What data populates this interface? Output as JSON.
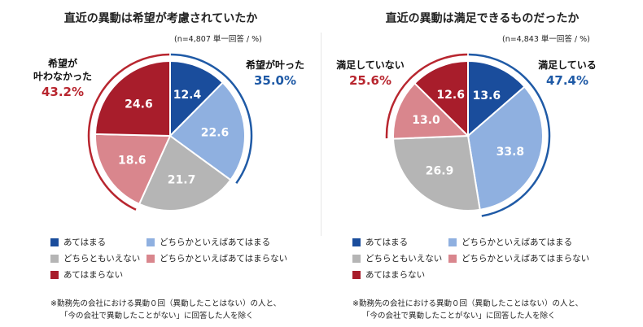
{
  "legend": {
    "items": [
      {
        "label": "あてはまる",
        "color": "#1a4d9c"
      },
      {
        "label": "どちらかといえばあてはまる",
        "color": "#8fb0e0"
      },
      {
        "label": "どちらともいえない",
        "color": "#b5b5b5"
      },
      {
        "label": "どちらかといえばあてはまらない",
        "color": "#d9868d"
      },
      {
        "label": "あてはまらない",
        "color": "#a81d2b"
      }
    ]
  },
  "footnote": {
    "line1": "※勤務先の会社における異動０回（異動したことはない）の人と、",
    "line2": "「今の会社で異動したことがない」に回答した人を除く"
  },
  "chart_data": [
    {
      "type": "pie",
      "title": "直近の異動は希望が考慮されていたか",
      "note": "(n=4,807 単一回答 / %)",
      "categories": [
        "あてはまる",
        "どちらかといえばあてはまる",
        "どちらともいえない",
        "どちらかといえばあてはまらない",
        "あてはまらない"
      ],
      "values": [
        12.4,
        22.6,
        21.7,
        18.6,
        24.6
      ],
      "colors": [
        "#1a4d9c",
        "#8fb0e0",
        "#b5b5b5",
        "#d9868d",
        "#a81d2b"
      ],
      "positive": {
        "label": "希望が叶った",
        "value": "35.0%",
        "color": "#1f5aa6"
      },
      "negative": {
        "label_line1": "希望が",
        "label_line2": "叶わなかった",
        "value": "43.2%",
        "color": "#b8262f"
      }
    },
    {
      "type": "pie",
      "title": "直近の異動は満足できるものだったか",
      "note": "(n=4,843 単一回答 / %)",
      "categories": [
        "あてはまる",
        "どちらかといえばあてはまる",
        "どちらともいえない",
        "どちらかといえばあてはまらない",
        "あてはまらない"
      ],
      "values": [
        13.6,
        33.8,
        26.9,
        13.0,
        12.6
      ],
      "colors": [
        "#1a4d9c",
        "#8fb0e0",
        "#b5b5b5",
        "#d9868d",
        "#a81d2b"
      ],
      "positive": {
        "label": "満足している",
        "value": "47.4%",
        "color": "#1f5aa6"
      },
      "negative": {
        "label_line1": "満足していない",
        "label_line2": "",
        "value": "25.6%",
        "color": "#b8262f"
      }
    }
  ]
}
